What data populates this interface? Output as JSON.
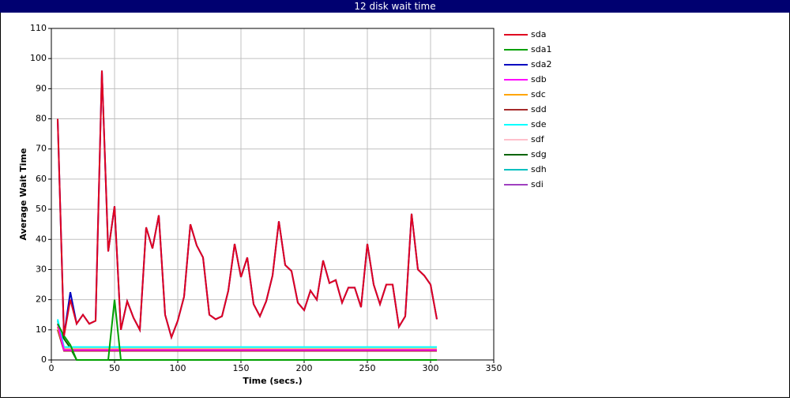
{
  "chart_data": {
    "type": "line",
    "title": "12 disk wait time",
    "xlabel": "Time (secs.)",
    "ylabel": "Average Wait Time",
    "xlim": [
      0,
      350
    ],
    "xticks": [
      0,
      50,
      100,
      150,
      200,
      250,
      300,
      350
    ],
    "ylim": [
      0,
      110
    ],
    "yticks": [
      0,
      10,
      20,
      30,
      40,
      50,
      60,
      70,
      80,
      90,
      100,
      110
    ],
    "grid": true,
    "legend": "right",
    "x": [
      5,
      10,
      15,
      20,
      25,
      30,
      35,
      40,
      45,
      50,
      55,
      60,
      65,
      70,
      75,
      80,
      85,
      90,
      95,
      100,
      105,
      110,
      115,
      120,
      125,
      130,
      135,
      140,
      145,
      150,
      155,
      160,
      165,
      170,
      175,
      180,
      185,
      190,
      195,
      200,
      205,
      210,
      215,
      220,
      225,
      230,
      235,
      240,
      245,
      250,
      255,
      260,
      265,
      270,
      275,
      280,
      285,
      290,
      295,
      300,
      305
    ],
    "series": [
      {
        "name": "sda",
        "color": "#e00020",
        "values": [
          80,
          8,
          20,
          12,
          15,
          12,
          13,
          96,
          36,
          51,
          10,
          19.5,
          14,
          10,
          44,
          37,
          48,
          15,
          7.5,
          13,
          21,
          45,
          38,
          34,
          15,
          13.5,
          14.5,
          23,
          38.5,
          27.5,
          34,
          18.5,
          14.5,
          19.5,
          28,
          46,
          31.5,
          29.5,
          19,
          16.5,
          23,
          20,
          33,
          25.5,
          26.5,
          19,
          24,
          24,
          17.5,
          38.5,
          25,
          18.5,
          25,
          25,
          11,
          14.5,
          48.5,
          30,
          28,
          25,
          13.5
        ]
      },
      {
        "name": "sda1",
        "color": "#00a000",
        "values": [
          12,
          8,
          5,
          0,
          0,
          0,
          0,
          0,
          0,
          20,
          0,
          0,
          0,
          0,
          0,
          0,
          0,
          0,
          0,
          0,
          0,
          0,
          0,
          0,
          0,
          0,
          0,
          0,
          0,
          0,
          0,
          0,
          0,
          0,
          0,
          0,
          0,
          0,
          0,
          0,
          0,
          0,
          0,
          0,
          0,
          0,
          0,
          0,
          0,
          0,
          0,
          0,
          0,
          0,
          0,
          0,
          0,
          0,
          0,
          0,
          0
        ]
      },
      {
        "name": "sda2",
        "color": "#0000c0",
        "values": [
          80,
          8,
          22.5,
          12,
          15,
          12,
          13,
          96,
          36,
          51,
          10,
          19.5,
          14,
          10,
          44,
          37,
          48,
          15,
          7.5,
          13,
          21,
          45,
          38,
          34,
          15,
          13.5,
          14.5,
          23,
          38.5,
          27.5,
          34,
          18.5,
          14.5,
          19.5,
          28,
          46,
          31.5,
          29.5,
          19,
          16.5,
          23,
          20,
          33,
          25.5,
          26.5,
          19,
          24,
          24,
          17.5,
          38.5,
          25,
          18.5,
          25,
          25,
          11,
          14.5,
          48.5,
          30,
          28,
          25,
          13.5
        ]
      },
      {
        "name": "sdb",
        "color": "#ff00ff",
        "values": [
          12,
          3.3,
          3.3,
          3.3,
          3.3,
          3.3,
          3.3,
          3.3,
          3.3,
          3.3,
          3.3,
          3.3,
          3.3,
          3.3,
          3.3,
          3.3,
          3.3,
          3.3,
          3.3,
          3.3,
          3.3,
          3.3,
          3.3,
          3.3,
          3.3,
          3.3,
          3.3,
          3.3,
          3.3,
          3.3,
          3.3,
          3.3,
          3.3,
          3.3,
          3.3,
          3.3,
          3.3,
          3.3,
          3.3,
          3.3,
          3.3,
          3.3,
          3.3,
          3.3,
          3.3,
          3.3,
          3.3,
          3.3,
          3.3,
          3.3,
          3.3,
          3.3,
          3.3,
          3.3,
          3.3,
          3.3,
          3.3,
          3.3,
          3.3,
          3.3,
          3.3
        ]
      },
      {
        "name": "sdc",
        "color": "#ffa500",
        "values": [
          11,
          3.5,
          3.5,
          3.5,
          3.5,
          3.5,
          3.5,
          3.5,
          3.5,
          3.5,
          3.5,
          3.5,
          3.5,
          3.5,
          3.5,
          3.5,
          3.5,
          3.5,
          3.5,
          3.5,
          3.5,
          3.5,
          3.5,
          3.5,
          3.5,
          3.5,
          3.5,
          3.5,
          3.5,
          3.5,
          3.5,
          3.5,
          3.5,
          3.5,
          3.5,
          3.5,
          3.5,
          3.5,
          3.5,
          3.5,
          3.5,
          3.5,
          3.5,
          3.5,
          3.5,
          3.5,
          3.5,
          3.5,
          3.5,
          3.5,
          3.5,
          3.5,
          3.5,
          3.5,
          3.5,
          3.5,
          3.5,
          3.5,
          3.5,
          3.5,
          3.5
        ]
      },
      {
        "name": "sdd",
        "color": "#a52a2a",
        "values": [
          10,
          3,
          3,
          3,
          3,
          3,
          3,
          3,
          3,
          3,
          3,
          3,
          3,
          3,
          3,
          3,
          3,
          3,
          3,
          3,
          3,
          3,
          3,
          3,
          3,
          3,
          3,
          3,
          3,
          3,
          3,
          3,
          3,
          3,
          3,
          3,
          3,
          3,
          3,
          3,
          3,
          3,
          3,
          3,
          3,
          3,
          3,
          3,
          3,
          3,
          3,
          3,
          3,
          3,
          3,
          3,
          3,
          3,
          3,
          3,
          3
        ]
      },
      {
        "name": "sde",
        "color": "#00ffff",
        "values": [
          13.5,
          4.3,
          4.3,
          4.3,
          4.3,
          4.3,
          4.3,
          4.3,
          4.3,
          4.3,
          4.3,
          4.3,
          4.3,
          4.3,
          4.3,
          4.3,
          4.3,
          4.3,
          4.3,
          4.3,
          4.3,
          4.3,
          4.3,
          4.3,
          4.3,
          4.3,
          4.3,
          4.3,
          4.3,
          4.3,
          4.3,
          4.3,
          4.3,
          4.3,
          4.3,
          4.3,
          4.3,
          4.3,
          4.3,
          4.3,
          4.3,
          4.3,
          4.3,
          4.3,
          4.3,
          4.3,
          4.3,
          4.3,
          4.3,
          4.3,
          4.3,
          4.3,
          4.3,
          4.3,
          4.3,
          4.3,
          4.3,
          4.3,
          4.3,
          4.3,
          4.3
        ]
      },
      {
        "name": "sdf",
        "color": "#ffc0cb",
        "values": [
          12,
          3.8,
          3.8,
          3.8,
          3.8,
          3.8,
          3.8,
          3.8,
          3.8,
          3.8,
          3.8,
          3.8,
          3.8,
          3.8,
          3.8,
          3.8,
          3.8,
          3.8,
          3.8,
          3.8,
          3.8,
          3.8,
          3.8,
          3.8,
          3.8,
          3.8,
          3.8,
          3.8,
          3.8,
          3.8,
          3.8,
          3.8,
          3.8,
          3.8,
          3.8,
          3.8,
          3.8,
          3.8,
          3.8,
          3.8,
          3.8,
          3.8,
          3.8,
          3.8,
          3.8,
          3.8,
          3.8,
          3.8,
          3.8,
          3.8,
          3.8,
          3.8,
          3.8,
          3.8,
          3.8,
          3.8,
          3.8,
          3.8,
          3.8,
          3.8,
          3.8
        ]
      },
      {
        "name": "sdg",
        "color": "#006400",
        "values": [
          11,
          7,
          4,
          0,
          0,
          0,
          0,
          0,
          0,
          0,
          0,
          0,
          0,
          0,
          0,
          0,
          0,
          0,
          0,
          0,
          0,
          0,
          0,
          0,
          0,
          0,
          0,
          0,
          0,
          0,
          0,
          0,
          0,
          0,
          0,
          0,
          0,
          0,
          0,
          0,
          0,
          0,
          0,
          0,
          0,
          0,
          0,
          0,
          0,
          0,
          0,
          0,
          0,
          0,
          0,
          0,
          0,
          0,
          0,
          0,
          0
        ]
      },
      {
        "name": "sdh",
        "color": "#00c0c0",
        "values": [
          13,
          4,
          4,
          4,
          4,
          4,
          4,
          4,
          4,
          4,
          4,
          4,
          4,
          4,
          4,
          4,
          4,
          4,
          4,
          4,
          4,
          4,
          4,
          4,
          4,
          4,
          4,
          4,
          4,
          4,
          4,
          4,
          4,
          4,
          4,
          4,
          4,
          4,
          4,
          4,
          4,
          4,
          4,
          4,
          4,
          4,
          4,
          4,
          4,
          4,
          4,
          4,
          4,
          4,
          4,
          4,
          4,
          4,
          4,
          4,
          4
        ]
      },
      {
        "name": "sdi",
        "color": "#a040c0",
        "values": [
          11,
          3.6,
          3.6,
          3.6,
          3.6,
          3.6,
          3.6,
          3.6,
          3.6,
          3.6,
          3.6,
          3.6,
          3.6,
          3.6,
          3.6,
          3.6,
          3.6,
          3.6,
          3.6,
          3.6,
          3.6,
          3.6,
          3.6,
          3.6,
          3.6,
          3.6,
          3.6,
          3.6,
          3.6,
          3.6,
          3.6,
          3.6,
          3.6,
          3.6,
          3.6,
          3.6,
          3.6,
          3.6,
          3.6,
          3.6,
          3.6,
          3.6,
          3.6,
          3.6,
          3.6,
          3.6,
          3.6,
          3.6,
          3.6,
          3.6,
          3.6,
          3.6,
          3.6,
          3.6,
          3.6,
          3.6,
          3.6,
          3.6,
          3.6,
          3.6,
          3.6
        ]
      }
    ]
  }
}
